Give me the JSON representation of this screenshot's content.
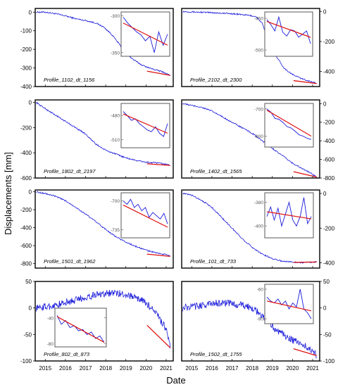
{
  "figure": {
    "xlabel": "Date",
    "ylabel": "Displacements [mm]",
    "x_ticks": [
      "2015",
      "2016",
      "2017",
      "2018",
      "2019",
      "2020",
      "2021"
    ]
  },
  "colors": {
    "series": "#1a1adb",
    "fit": "#e01010",
    "inset_frame": "#666666",
    "frame": "#000000"
  },
  "chart_data": [
    {
      "type": "line",
      "label": "Profile_1102_dt_1156",
      "xlim": [
        2014.5,
        2021.35
      ],
      "ylim": [
        -400,
        20
      ],
      "yticks": [
        0,
        -100,
        -200,
        -300,
        -400
      ],
      "yaxis_side": "left",
      "series": [
        {
          "x": [
            2014.55,
            2015.0,
            2015.5,
            2016.0,
            2016.5,
            2017.0,
            2017.5,
            2017.9,
            2018.3,
            2018.8,
            2019.3,
            2019.8,
            2020.3,
            2020.8,
            2021.2
          ],
          "values": [
            0,
            0,
            -8,
            -20,
            -35,
            -45,
            -58,
            -80,
            -120,
            -190,
            -250,
            -285,
            -305,
            -320,
            -340
          ]
        }
      ],
      "inset": {
        "x0": 2020.0,
        "x1": 2021.25,
        "ylim": [
          -355,
          -295
        ],
        "yticks": [
          -300,
          -350
        ],
        "tick_side": "left",
        "values": [
          -302,
          -310,
          -316,
          -322,
          -326,
          -334,
          -328,
          -350,
          -322,
          -340,
          -325
        ],
        "fit": [
          -310,
          -340
        ]
      }
    },
    {
      "type": "line",
      "label": "Profile_2102_dt_2300",
      "xlim": [
        2014.5,
        2021.35
      ],
      "ylim": [
        -500,
        20
      ],
      "yticks": [
        0,
        -200,
        -400
      ],
      "yaxis_side": "right",
      "series": [
        {
          "x": [
            2014.55,
            2015.0,
            2016.0,
            2017.0,
            2017.8,
            2018.2,
            2018.5,
            2018.8,
            2019.2,
            2019.6,
            2020.0,
            2020.5,
            2021.0,
            2021.2
          ],
          "values": [
            0,
            -3,
            -8,
            -15,
            -25,
            -35,
            -80,
            -200,
            -300,
            -380,
            -420,
            -450,
            -470,
            -480
          ]
        }
      ],
      "inset": {
        "x0": 2020.0,
        "x1": 2021.25,
        "ylim": [
          -510,
          -440
        ],
        "yticks": [
          -450,
          -500
        ],
        "tick_side": "left",
        "values": [
          -452,
          -460,
          -470,
          -448,
          -472,
          -478,
          -468,
          -470,
          -480,
          -475,
          -470,
          -490
        ],
        "fit": [
          -455,
          -480
        ]
      }
    },
    {
      "type": "line",
      "label": "Profile_1802_dt_2197",
      "xlim": [
        2014.5,
        2021.35
      ],
      "ylim": [
        -600,
        20
      ],
      "yticks": [
        0,
        -200,
        -400,
        -600
      ],
      "yaxis_side": "left",
      "series": [
        {
          "x": [
            2014.55,
            2015.0,
            2015.5,
            2016.0,
            2016.5,
            2017.0,
            2017.5,
            2018.0,
            2018.5,
            2019.0,
            2019.5,
            2020.0,
            2020.5,
            2021.0,
            2021.2
          ],
          "values": [
            0,
            -50,
            -100,
            -150,
            -200,
            -250,
            -330,
            -380,
            -410,
            -440,
            -460,
            -475,
            -480,
            -490,
            -500
          ]
        }
      ],
      "inset": {
        "x0": 2020.0,
        "x1": 2021.25,
        "ylim": [
          -520,
          -465
        ],
        "yticks": [
          -480,
          -510
        ],
        "tick_side": "left",
        "values": [
          -475,
          -480,
          -486,
          -484,
          -490,
          -494,
          -498,
          -500,
          -494,
          -502,
          -506,
          -490
        ],
        "fit": [
          -478,
          -502
        ]
      }
    },
    {
      "type": "line",
      "label": "Profile_1402_dt_1565",
      "xlim": [
        2014.5,
        2021.35
      ],
      "ylim": [
        -800,
        40
      ],
      "yticks": [
        0,
        -200,
        -400,
        -600,
        -800
      ],
      "yaxis_side": "right",
      "series": [
        {
          "x": [
            2014.55,
            2015.0,
            2015.5,
            2016.0,
            2016.5,
            2017.0,
            2017.5,
            2018.0,
            2018.5,
            2019.0,
            2019.5,
            2020.0,
            2020.5,
            2021.0,
            2021.2
          ],
          "values": [
            0,
            -20,
            -40,
            -80,
            -140,
            -200,
            -260,
            -320,
            -400,
            -480,
            -560,
            -640,
            -700,
            -760,
            -790
          ]
        }
      ],
      "inset": {
        "x0": 2020.0,
        "x1": 2021.25,
        "ylim": [
          -840,
          -680
        ],
        "yticks": [
          -700,
          -800
        ],
        "tick_side": "left",
        "values": [
          -700,
          -712,
          -735,
          -738,
          -750,
          -765,
          -770,
          -782,
          -795,
          -800,
          -808,
          -812
        ],
        "fit": [
          -705,
          -800
        ]
      }
    },
    {
      "type": "line",
      "label": "Profile_1501_dt_1962",
      "xlim": [
        2014.5,
        2021.35
      ],
      "ylim": [
        -850,
        20
      ],
      "yticks": [
        0,
        -200,
        -400,
        -600,
        -800
      ],
      "yaxis_side": "left",
      "series": [
        {
          "x": [
            2014.55,
            2015.0,
            2015.5,
            2016.0,
            2016.5,
            2017.0,
            2017.5,
            2018.0,
            2018.5,
            2019.0,
            2019.5,
            2020.0,
            2020.5,
            2021.0,
            2021.2
          ],
          "values": [
            0,
            -20,
            -50,
            -100,
            -170,
            -250,
            -330,
            -420,
            -500,
            -560,
            -610,
            -650,
            -680,
            -700,
            -720
          ]
        }
      ],
      "inset": {
        "x0": 2020.0,
        "x1": 2021.25,
        "ylim": [
          -745,
          -690
        ],
        "yticks": [
          -700,
          -735
        ],
        "tick_side": "left",
        "values": [
          -700,
          -704,
          -698,
          -708,
          -704,
          -712,
          -708,
          -720,
          -714,
          -718,
          -722,
          -715,
          -728
        ],
        "fit": [
          -705,
          -732
        ]
      }
    },
    {
      "type": "line",
      "label": "Profile_101_dt_733",
      "xlim": [
        2014.5,
        2021.35
      ],
      "ylim": [
        -430,
        20
      ],
      "yticks": [
        0,
        -200,
        -400
      ],
      "yaxis_side": "right",
      "series": [
        {
          "x": [
            2014.55,
            2015.0,
            2015.5,
            2016.0,
            2016.5,
            2017.0,
            2017.5,
            2018.0,
            2018.5,
            2019.0,
            2019.5,
            2020.0,
            2020.5,
            2021.0,
            2021.2
          ],
          "values": [
            0,
            -10,
            -40,
            -80,
            -140,
            -200,
            -260,
            -310,
            -350,
            -375,
            -390,
            -395,
            -398,
            -395,
            -395
          ]
        }
      ],
      "inset": {
        "x0": 2020.0,
        "x1": 2021.25,
        "ylim": [
          -410,
          -372
        ],
        "yticks": [
          -380,
          -400
        ],
        "tick_side": "left",
        "values": [
          -392,
          -384,
          -395,
          -385,
          -400,
          -390,
          -380,
          -395,
          -400,
          -392,
          -376,
          -398,
          -392
        ],
        "fit": [
          -388,
          -394
        ]
      }
    },
    {
      "type": "line",
      "label": "Profile_802_dt_873",
      "xlim": [
        2014.5,
        2021.35
      ],
      "ylim": [
        -100,
        50
      ],
      "yticks": [
        50,
        0,
        -50,
        -100
      ],
      "yaxis_side": "left",
      "series": [
        {
          "x": [
            2014.55,
            2015.0,
            2015.5,
            2016.0,
            2016.5,
            2017.0,
            2017.5,
            2018.0,
            2018.5,
            2019.0,
            2019.5,
            2020.0,
            2020.5,
            2021.0,
            2021.2
          ],
          "values": [
            0,
            2,
            5,
            10,
            15,
            20,
            25,
            28,
            28,
            25,
            20,
            10,
            -10,
            -40,
            -75
          ]
        }
      ],
      "inset": {
        "x0": 2020.0,
        "x1": 2021.25,
        "ylim": [
          -85,
          -25
        ],
        "yticks": [
          -40,
          -80
        ],
        "tick_side": "right",
        "values": [
          -36,
          -50,
          -44,
          -55,
          -52,
          -60,
          -58,
          -66,
          -62,
          -72,
          -68,
          -78
        ],
        "fit": [
          -38,
          -78
        ]
      }
    },
    {
      "type": "line",
      "label": "Profile_1502_dt_1755",
      "xlim": [
        2014.5,
        2021.35
      ],
      "ylim": [
        -100,
        50
      ],
      "yticks": [
        50,
        0,
        -50,
        -100
      ],
      "yaxis_side": "right",
      "series": [
        {
          "x": [
            2014.55,
            2015.0,
            2015.5,
            2016.0,
            2016.5,
            2017.0,
            2017.5,
            2018.0,
            2018.5,
            2019.0,
            2019.5,
            2020.0,
            2020.5,
            2021.0,
            2021.2
          ],
          "values": [
            0,
            2,
            5,
            8,
            10,
            8,
            5,
            0,
            -15,
            -35,
            -50,
            -60,
            -70,
            -80,
            -90
          ]
        }
      ],
      "inset": {
        "x0": 2020.0,
        "x1": 2021.25,
        "ylim": [
          -95,
          -55
        ],
        "yticks": [
          -60,
          -90
        ],
        "tick_side": "left",
        "values": [
          -68,
          -72,
          -74,
          -70,
          -76,
          -72,
          -80,
          -74,
          -78,
          -60,
          -80,
          -84,
          -90
        ],
        "fit": [
          -72,
          -82
        ]
      }
    }
  ]
}
